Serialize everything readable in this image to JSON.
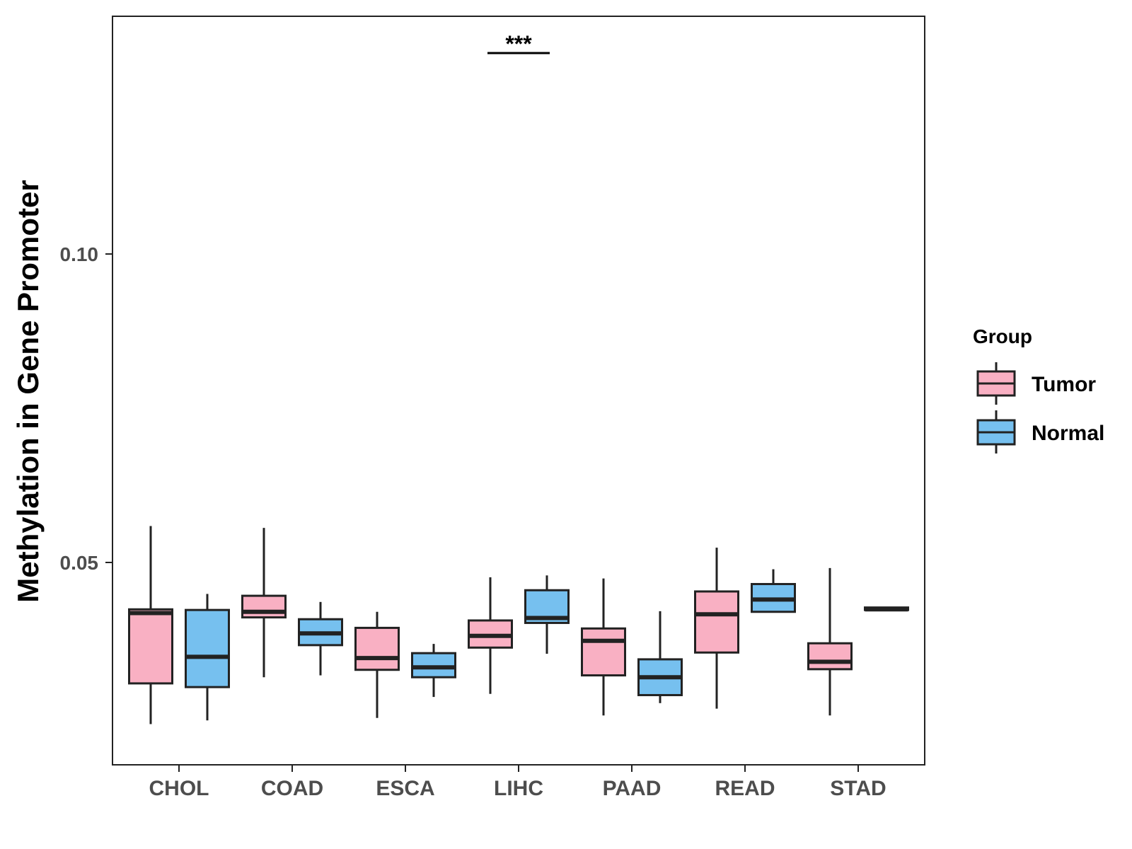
{
  "chart_data": {
    "type": "boxplot",
    "title": "",
    "xlabel": "",
    "ylabel": "Methylation in Gene Promoter",
    "ylim": [
      0.017,
      0.138
    ],
    "yticks": [
      0.05,
      0.1
    ],
    "ytick_labels": [
      "0.05",
      "0.10"
    ],
    "grid": false,
    "legend_position": "right",
    "legend_title": "Group",
    "categories": [
      "CHOL",
      "COAD",
      "ESCA",
      "LIHC",
      "PAAD",
      "READ",
      "STAD"
    ],
    "series": [
      {
        "name": "Tumor",
        "color": "#f9b0c3",
        "boxes": [
          {
            "min": 0.0238,
            "q1": 0.0304,
            "median": 0.0418,
            "q3": 0.0424,
            "max": 0.0559
          },
          {
            "min": 0.0314,
            "q1": 0.0411,
            "median": 0.042,
            "q3": 0.0446,
            "max": 0.0556
          },
          {
            "min": 0.0248,
            "q1": 0.0326,
            "median": 0.0345,
            "q3": 0.0394,
            "max": 0.042
          },
          {
            "min": 0.0287,
            "q1": 0.0362,
            "median": 0.0381,
            "q3": 0.0406,
            "max": 0.0476
          },
          {
            "min": 0.0252,
            "q1": 0.0317,
            "median": 0.0373,
            "q3": 0.0393,
            "max": 0.0474
          },
          {
            "min": 0.0263,
            "q1": 0.0354,
            "median": 0.0416,
            "q3": 0.0453,
            "max": 0.0524
          },
          {
            "min": 0.0252,
            "q1": 0.0327,
            "median": 0.0339,
            "q3": 0.0369,
            "max": 0.0491
          }
        ]
      },
      {
        "name": "Normal",
        "color": "#76c0ef",
        "boxes": [
          {
            "min": 0.0244,
            "q1": 0.0298,
            "median": 0.0347,
            "q3": 0.0423,
            "max": 0.0449
          },
          {
            "min": 0.0317,
            "q1": 0.0366,
            "median": 0.0385,
            "q3": 0.0408,
            "max": 0.0436
          },
          {
            "min": 0.0282,
            "q1": 0.0314,
            "median": 0.033,
            "q3": 0.0353,
            "max": 0.0368
          },
          {
            "min": 0.0352,
            "q1": 0.0402,
            "median": 0.041,
            "q3": 0.0455,
            "max": 0.0479
          },
          {
            "min": 0.0272,
            "q1": 0.0285,
            "median": 0.0314,
            "q3": 0.0343,
            "max": 0.0421
          },
          {
            "min": 0.042,
            "q1": 0.042,
            "median": 0.044,
            "q3": 0.0465,
            "max": 0.0489
          },
          {
            "min": 0.0423,
            "q1": 0.0423,
            "median": 0.0424,
            "q3": 0.0427,
            "max": 0.0427
          }
        ]
      }
    ],
    "annotations": [
      {
        "category": "LIHC",
        "label": "***"
      }
    ]
  }
}
